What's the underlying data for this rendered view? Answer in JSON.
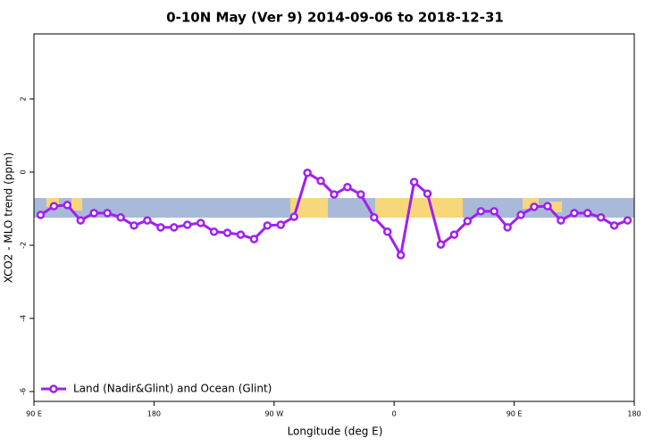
{
  "chart_data": {
    "type": "line",
    "title": "0-10N May (Ver 9)   2014-09-06 to 2018-12-31",
    "x_label": "Longitude (deg E)",
    "y_label": "XCO2 - MLO trend (ppm)",
    "x": [
      95,
      105,
      115,
      125,
      135,
      145,
      155,
      165,
      175,
      185,
      195,
      205,
      215,
      225,
      235,
      245,
      255,
      265,
      275,
      285,
      295,
      305,
      315,
      325,
      335,
      345,
      355,
      365,
      375,
      385,
      395,
      405,
      415,
      425,
      435,
      445,
      455,
      465,
      475,
      485,
      495,
      505,
      515,
      525,
      535
    ],
    "series": [
      {
        "name": "Land (Nadir&Glint) and Ocean (Glint)",
        "color": "#a020f0",
        "values": [
          -1.17,
          -0.93,
          -0.9,
          -1.32,
          -1.12,
          -1.12,
          -1.24,
          -1.46,
          -1.32,
          -1.51,
          -1.51,
          -1.44,
          -1.39,
          -1.63,
          -1.66,
          -1.71,
          -1.83,
          -1.46,
          -1.44,
          -1.22,
          -0.02,
          -0.24,
          -0.61,
          -0.41,
          -0.61,
          -1.24,
          -1.63,
          -2.27,
          -0.27,
          -0.59,
          -1.98,
          -1.71,
          -1.34,
          -1.07,
          -1.07,
          -1.51,
          -1.17,
          -0.95,
          -0.93,
          -1.32,
          -1.12,
          -1.12,
          -1.24,
          -1.46,
          -1.32
        ]
      }
    ],
    "xlim": [
      90,
      540
    ],
    "xticks": [
      {
        "value": 90,
        "label": "90 E"
      },
      {
        "value": 180,
        "label": "180"
      },
      {
        "value": 270,
        "label": "90 W"
      },
      {
        "value": 360,
        "label": "0"
      },
      {
        "value": 450,
        "label": "90 E"
      },
      {
        "value": 540,
        "label": "180"
      }
    ],
    "ylim": [
      -6.27,
      3.78
    ],
    "yticks": [
      -6,
      -4,
      -2,
      0,
      2
    ],
    "legend": "bottom-left"
  }
}
